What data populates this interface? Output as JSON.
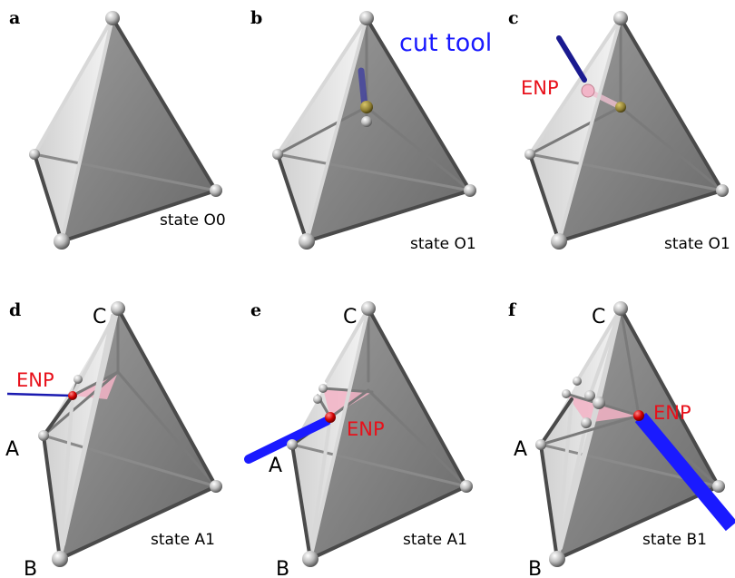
{
  "panels": [
    {
      "letter": "a",
      "state": "state O0"
    },
    {
      "letter": "b",
      "state": "state O1",
      "annotation": "cut tool"
    },
    {
      "letter": "c",
      "state": "state O1",
      "annotation": "ENP"
    },
    {
      "letter": "d",
      "state": "state A1",
      "annotation": "ENP",
      "vertices": [
        "C",
        "A",
        "B"
      ]
    },
    {
      "letter": "e",
      "state": "state A1",
      "annotation": "ENP",
      "vertices": [
        "C",
        "A",
        "B"
      ]
    },
    {
      "letter": "f",
      "state": "state B1",
      "annotation": "ENP",
      "vertices": [
        "C",
        "A",
        "B"
      ]
    }
  ],
  "colors": {
    "enp": "#e8101a",
    "cut_tool": "#1a1aff",
    "highlight": "#f4a6c0"
  }
}
